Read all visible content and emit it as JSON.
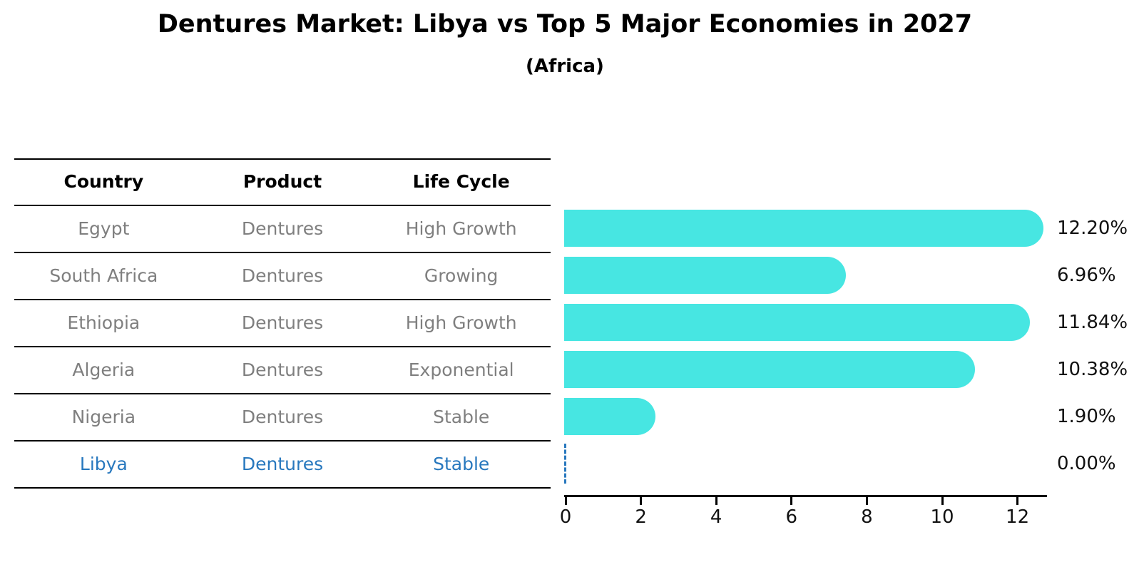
{
  "title": "Dentures Market: Libya vs Top 5 Major Economies in 2027",
  "subtitle": "(Africa)",
  "table": {
    "headers": [
      "Country",
      "Product",
      "Life Cycle"
    ],
    "rows": [
      {
        "country": "Egypt",
        "product": "Dentures",
        "life_cycle": "High Growth",
        "highlight": false
      },
      {
        "country": "South Africa",
        "product": "Dentures",
        "life_cycle": "Growing",
        "highlight": false
      },
      {
        "country": "Ethiopia",
        "product": "Dentures",
        "life_cycle": "High Growth",
        "highlight": false
      },
      {
        "country": "Algeria",
        "product": "Dentures",
        "life_cycle": "Exponential",
        "highlight": false
      },
      {
        "country": "Nigeria",
        "product": "Dentures",
        "life_cycle": "Stable",
        "highlight": false
      },
      {
        "country": "Libya",
        "product": "Dentures",
        "life_cycle": "Stable",
        "highlight": true
      }
    ]
  },
  "chart_data": {
    "type": "bar",
    "orientation": "horizontal",
    "categories": [
      "Egypt",
      "South Africa",
      "Ethiopia",
      "Algeria",
      "Nigeria",
      "Libya"
    ],
    "values": [
      12.2,
      6.96,
      11.84,
      10.38,
      1.9,
      0.0
    ],
    "value_labels": [
      "12.20%",
      "6.96%",
      "11.84%",
      "10.38%",
      "1.90%",
      "0.00%"
    ],
    "x_ticks": [
      0,
      2,
      4,
      6,
      8,
      10,
      12
    ],
    "xlim": [
      0,
      12.8
    ],
    "xlabel": "",
    "ylabel": "",
    "grid": false,
    "legend": false,
    "highlight_category": "Libya",
    "zero_marker_style": "dashed-line"
  },
  "colors": {
    "bar": "#47e6e2",
    "accent_blue": "#2878be",
    "muted_text": "#7f7f7f",
    "text": "#111111",
    "line": "#000000"
  }
}
